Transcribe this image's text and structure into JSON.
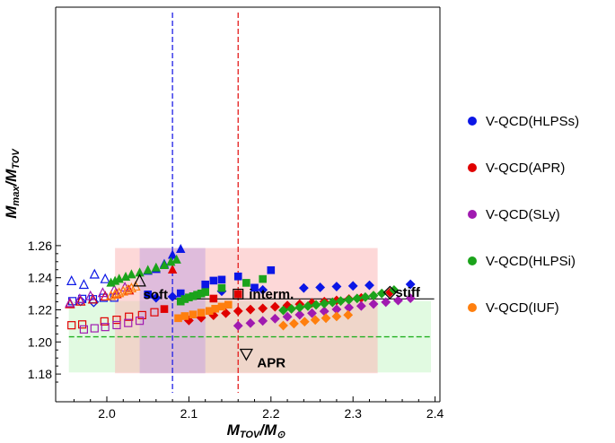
{
  "chart_data": {
    "type": "scatter",
    "xlabel": "M_TOV/M_⊙",
    "ylabel": "M_max/M_TOV",
    "xlim": [
      1.945,
      2.4
    ],
    "ylim": [
      1.175,
      1.262
    ],
    "x_ticks": [
      "2.0",
      "2.1",
      "2.2",
      "2.3",
      "2.4"
    ],
    "y_ticks": [
      "1.18",
      "1.20",
      "1.22",
      "1.24",
      "1.26"
    ],
    "legend_position": "right",
    "bands": {
      "red_x": [
        2.01,
        2.33
      ],
      "purple_x": [
        2.04,
        2.12
      ],
      "green_y": [
        1.181,
        1.2255
      ],
      "red_vline_x": 2.16,
      "blue_vline_x": 2.08,
      "green_hline_y": 1.2032,
      "black_hline_y": 1.2268
    },
    "annotations": [
      {
        "label": "soft",
        "marker": "triangle-up",
        "x": 2.04,
        "y": 1.2378
      },
      {
        "label": "interm.",
        "marker": "square",
        "x": 2.16,
        "y": 1.2298
      },
      {
        "label": "stiff",
        "marker": "diamond",
        "x": 2.345,
        "y": 1.2308
      },
      {
        "label": "APR",
        "marker": "triangle-down",
        "x": 2.17,
        "y": 1.1925
      }
    ],
    "series": [
      {
        "name": "V-QCD(HLPSs)",
        "color": "#0b16e6",
        "filled_triangles": [
          [
            2.05,
            1.2442
          ],
          [
            2.06,
            1.2453
          ],
          [
            2.07,
            1.2485
          ],
          [
            2.08,
            1.2542
          ],
          [
            2.09,
            1.2578
          ]
        ],
        "filled_squares": [
          [
            2.05,
            1.2296
          ],
          [
            2.09,
            1.2303
          ],
          [
            2.12,
            1.2358
          ],
          [
            2.13,
            1.2382
          ],
          [
            2.14,
            1.2388
          ],
          [
            2.16,
            1.2408
          ],
          [
            2.18,
            1.2338
          ],
          [
            2.2,
            1.2447
          ]
        ],
        "filled_diamonds": [
          [
            2.06,
            1.2275
          ],
          [
            2.08,
            1.2282
          ],
          [
            2.14,
            1.2316
          ],
          [
            2.19,
            1.2324
          ],
          [
            2.24,
            1.2336
          ],
          [
            2.26,
            1.234
          ],
          [
            2.28,
            1.2345
          ],
          [
            2.3,
            1.2349
          ],
          [
            2.32,
            1.2353
          ],
          [
            2.37,
            1.2359
          ]
        ],
        "open_triangles": [
          [
            1.957,
            1.2379
          ],
          [
            1.972,
            1.2356
          ],
          [
            1.985,
            1.242
          ],
          [
            1.998,
            1.2391
          ]
        ],
        "open_squares": [
          [
            1.958,
            1.2254
          ],
          [
            1.97,
            1.2268
          ],
          [
            1.983,
            1.2266
          ],
          [
            1.996,
            1.2275
          ],
          [
            2.009,
            1.2276
          ]
        ],
        "open_diamonds": [
          [
            1.968,
            1.2255
          ],
          [
            1.984,
            1.2249
          ]
        ]
      },
      {
        "name": "V-QCD(APR)",
        "color": "#e00000",
        "filled_triangles": [
          [
            2.08,
            1.245
          ]
        ],
        "filled_squares": [
          [
            2.07,
            1.2205
          ],
          [
            2.13,
            1.227
          ],
          [
            2.16,
            1.2298
          ]
        ],
        "filled_diamonds": [
          [
            2.1,
            1.2134
          ],
          [
            2.115,
            1.2151
          ],
          [
            2.13,
            1.2166
          ],
          [
            2.145,
            1.2179
          ],
          [
            2.16,
            1.2192
          ],
          [
            2.175,
            1.2202
          ],
          [
            2.19,
            1.2209
          ],
          [
            2.205,
            1.2219
          ],
          [
            2.22,
            1.2227
          ],
          [
            2.235,
            1.2235
          ],
          [
            2.25,
            1.2243
          ],
          [
            2.265,
            1.2251
          ],
          [
            2.28,
            1.2259
          ],
          [
            2.295,
            1.2267
          ],
          [
            2.31,
            1.2274
          ],
          [
            2.345,
            1.2308
          ]
        ],
        "open_triangles": [
          [
            1.955,
            1.2235
          ],
          [
            1.968,
            1.2252
          ],
          [
            1.983,
            1.2264
          ],
          [
            1.998,
            1.2283
          ],
          [
            2.012,
            1.2298
          ],
          [
            2.027,
            1.2321
          ]
        ],
        "open_squares": [
          [
            1.957,
            1.2104
          ],
          [
            1.97,
            1.2109
          ],
          [
            1.997,
            1.2128
          ],
          [
            2.012,
            1.2138
          ],
          [
            2.027,
            1.2157
          ],
          [
            2.043,
            1.2167
          ],
          [
            2.058,
            1.2185
          ]
        ]
      },
      {
        "name": "V-QCD(SLy)",
        "color": "#a01ab0",
        "filled_diamonds": [
          [
            2.16,
            1.2101
          ],
          [
            2.175,
            1.2117
          ],
          [
            2.19,
            1.2131
          ],
          [
            2.205,
            1.2145
          ],
          [
            2.22,
            1.2157
          ],
          [
            2.235,
            1.2169
          ],
          [
            2.25,
            1.2179
          ],
          [
            2.265,
            1.2191
          ],
          [
            2.28,
            1.2203
          ],
          [
            2.295,
            1.2214
          ],
          [
            2.31,
            1.2224
          ],
          [
            2.325,
            1.2236
          ],
          [
            2.34,
            1.2248
          ],
          [
            2.355,
            1.2258
          ],
          [
            2.37,
            1.2272
          ]
        ],
        "open_triangles": [
          [
            1.955,
            1.2242
          ],
          [
            1.967,
            1.2266
          ],
          [
            1.98,
            1.2285
          ],
          [
            1.995,
            1.2305
          ],
          [
            2.009,
            1.2322
          ],
          [
            2.022,
            1.2339
          ]
        ],
        "open_squares": [
          [
            1.972,
            1.2078
          ],
          [
            1.985,
            1.2085
          ],
          [
            1.998,
            1.2093
          ],
          [
            2.012,
            1.2105
          ],
          [
            2.026,
            1.2118
          ],
          [
            2.04,
            1.2132
          ]
        ]
      },
      {
        "name": "V-QCD(HLPSi)",
        "color": "#1ba31b",
        "filled_triangles": [
          [
            2.005,
            1.2368
          ],
          [
            2.01,
            1.2379
          ],
          [
            2.015,
            1.2392
          ],
          [
            2.023,
            1.2405
          ],
          [
            2.03,
            1.242
          ],
          [
            2.04,
            1.2431
          ],
          [
            2.05,
            1.2447
          ],
          [
            2.06,
            1.2462
          ],
          [
            2.07,
            1.2478
          ],
          [
            2.078,
            1.2498
          ],
          [
            2.085,
            1.2512
          ]
        ],
        "filled_squares": [
          [
            2.09,
            1.2252
          ],
          [
            2.095,
            1.2267
          ],
          [
            2.1,
            1.2277
          ],
          [
            2.105,
            1.2285
          ],
          [
            2.11,
            1.2294
          ],
          [
            2.115,
            1.2302
          ],
          [
            2.12,
            1.2311
          ],
          [
            2.14,
            1.2336
          ],
          [
            2.17,
            1.2368
          ],
          [
            2.19,
            1.2392
          ]
        ],
        "filled_diamonds": [
          [
            2.215,
            1.2197
          ],
          [
            2.225,
            1.2206
          ],
          [
            2.235,
            1.2215
          ],
          [
            2.245,
            1.2223
          ],
          [
            2.255,
            1.2231
          ],
          [
            2.265,
            1.2239
          ],
          [
            2.275,
            1.2247
          ],
          [
            2.285,
            1.2255
          ],
          [
            2.295,
            1.2263
          ],
          [
            2.305,
            1.2271
          ],
          [
            2.315,
            1.2279
          ],
          [
            2.325,
            1.2289
          ],
          [
            2.335,
            1.2302
          ],
          [
            2.35,
            1.2323
          ]
        ]
      },
      {
        "name": "V-QCD(IUF)",
        "color": "#ff7f0e",
        "filled_squares": [
          [
            2.087,
            1.2148
          ],
          [
            2.095,
            1.2161
          ],
          [
            2.105,
            1.2171
          ],
          [
            2.115,
            1.2182
          ],
          [
            2.125,
            1.2193
          ],
          [
            2.132,
            1.2207
          ],
          [
            2.14,
            1.222
          ],
          [
            2.148,
            1.2232
          ]
        ],
        "filled_diamonds": [
          [
            2.215,
            1.2102
          ],
          [
            2.228,
            1.2114
          ],
          [
            2.241,
            1.2126
          ],
          [
            2.254,
            1.2137
          ],
          [
            2.267,
            1.2148
          ],
          [
            2.28,
            1.2159
          ],
          [
            2.294,
            1.2168
          ]
        ],
        "open_triangles": [
          [
            2.005,
            1.2286
          ],
          [
            2.01,
            1.2295
          ],
          [
            2.015,
            1.2304
          ],
          [
            2.02,
            1.2314
          ],
          [
            2.025,
            1.2324
          ],
          [
            2.03,
            1.2334
          ],
          [
            2.035,
            1.2345
          ]
        ]
      }
    ]
  }
}
